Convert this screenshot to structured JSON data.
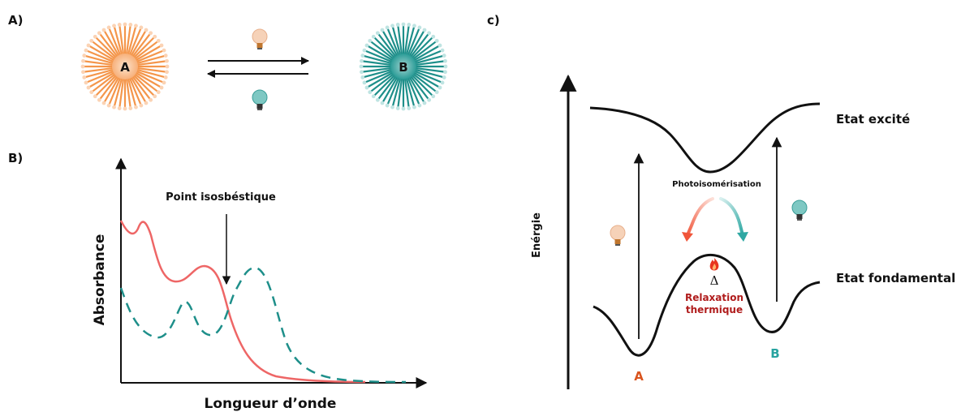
{
  "panel_a": {
    "label": "A)",
    "molecule_a": "A",
    "molecule_b": "B",
    "forward_light_icon": "lightbulb-orange-icon",
    "reverse_light_icon": "lightbulb-teal-icon"
  },
  "panel_b": {
    "label": "B)",
    "annotation": "Point isosbéstique",
    "ylabel": "Absorbance",
    "xlabel": "Longueur d’onde"
  },
  "panel_c": {
    "label": "c)",
    "ylabel": "Enérgie",
    "excited_state": "Etat excité",
    "ground_state": "Etat fondamental",
    "photoisomerization": "Photoisomérisation",
    "delta": "Δ",
    "relaxation_line1": "Relaxation",
    "relaxation_line2": "thermique",
    "minimum_a": "A",
    "minimum_b": "B",
    "heat_icon": "flame-icon"
  },
  "colors": {
    "orange": "#f4964b",
    "teal": "#1e8f8a",
    "red_curve": "#ee6666",
    "dark_red": "#b01c1c",
    "label_orange": "#d9541e",
    "label_teal": "#27a3a0"
  },
  "chart_data": {
    "type": "line",
    "title": "",
    "xlabel": "Longueur d’onde",
    "ylabel": "Absorbance",
    "series": [
      {
        "name": "",
        "style": "solid",
        "color": "#ee6666"
      },
      {
        "name": "",
        "style": "dashed",
        "color": "#1e8f8a"
      }
    ]
  }
}
